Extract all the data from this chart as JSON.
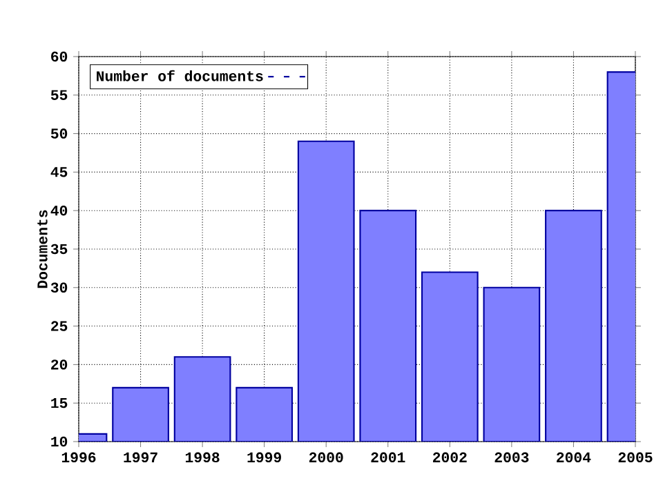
{
  "chart_data": {
    "type": "bar",
    "ylabel": "Documents",
    "x": [
      1996,
      1997,
      1998,
      1999,
      2000,
      2001,
      2002,
      2003,
      2004,
      2005
    ],
    "series": [
      {
        "name": "Number of documents",
        "color": "#7f7fff",
        "values": [
          11,
          17,
          21,
          17,
          49,
          40,
          32,
          30,
          40,
          58
        ]
      }
    ],
    "xlim": [
      1996,
      2005
    ],
    "xticks": [
      1996,
      1997,
      1998,
      1999,
      2000,
      2001,
      2002,
      2003,
      2004,
      2005
    ],
    "ylim": [
      10,
      60
    ],
    "yticks": [
      10,
      15,
      20,
      25,
      30,
      35,
      40,
      45,
      50,
      55,
      60
    ],
    "grid": true,
    "legend": "top left"
  }
}
